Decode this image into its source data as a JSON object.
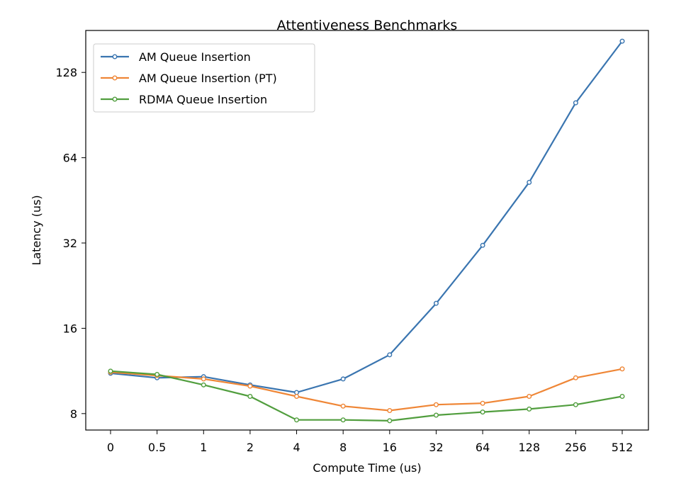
{
  "chart_data": {
    "type": "line",
    "title": "Attentiveness Benchmarks",
    "xlabel": "Compute Time (us)",
    "ylabel": "Latency (us)",
    "y_scale": "log2",
    "ylim": [
      7,
      180
    ],
    "y_ticks": [
      8,
      16,
      32,
      64,
      128
    ],
    "categories": [
      "0",
      "0.5",
      "1",
      "2",
      "4",
      "8",
      "16",
      "32",
      "64",
      "128",
      "256",
      "512"
    ],
    "legend_position": "top-left",
    "grid": false,
    "series": [
      {
        "name": "AM Queue Insertion",
        "color": "#3a75b0",
        "values": [
          11.1,
          10.7,
          10.8,
          10.1,
          9.5,
          10.6,
          12.9,
          19.6,
          31.4,
          52.4,
          100.0,
          165.0
        ]
      },
      {
        "name": "AM Queue Insertion (PT)",
        "color": "#ef8636",
        "values": [
          11.2,
          10.9,
          10.6,
          10.0,
          9.2,
          8.5,
          8.2,
          8.6,
          8.7,
          9.2,
          10.7,
          11.5
        ]
      },
      {
        "name": "RDMA Queue Insertion",
        "color": "#519e3e",
        "values": [
          11.3,
          11.0,
          10.1,
          9.2,
          7.6,
          7.6,
          7.55,
          7.9,
          8.1,
          8.3,
          8.6,
          9.2
        ]
      }
    ]
  }
}
